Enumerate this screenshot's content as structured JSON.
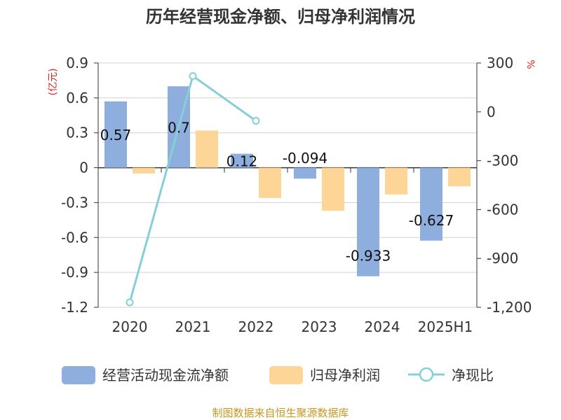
{
  "chart_data": {
    "type": "bar",
    "title": "历年经营现金净额、归母净利润情况",
    "categories": [
      "2020",
      "2021",
      "2022",
      "2023",
      "2024",
      "2025H1"
    ],
    "y_left": {
      "unit": "(亿元)",
      "range": [
        -1.2,
        0.9
      ],
      "ticks": [
        "0.9",
        "0.6",
        "0.3",
        "0",
        "-0.3",
        "-0.6",
        "-0.9",
        "-1.2"
      ]
    },
    "y_right": {
      "unit": "%",
      "range": [
        -1200,
        300
      ],
      "ticks": [
        "300",
        "0",
        "-300",
        "-600",
        "-900",
        "-1,200"
      ]
    },
    "series": [
      {
        "name": "经营活动现金流净额",
        "type": "bar",
        "axis": "left",
        "color": "#8eaedd",
        "values": [
          0.57,
          0.7,
          0.12,
          -0.094,
          -0.933,
          -0.627
        ],
        "labels": [
          "0.57",
          "0.7",
          "0.12",
          "-0.094",
          "-0.933",
          "-0.627"
        ]
      },
      {
        "name": "归母净利润",
        "type": "bar",
        "axis": "left",
        "color": "#fcd597",
        "values": [
          -0.05,
          0.32,
          -0.26,
          -0.37,
          -0.23,
          -0.16
        ]
      },
      {
        "name": "净现比",
        "type": "line",
        "axis": "right",
        "color": "#84cfd8",
        "values": [
          -1170,
          220,
          -55,
          null,
          null,
          null
        ]
      }
    ],
    "grid": true,
    "legend": "bottom"
  },
  "source": "制图数据来自恒生聚源数据库"
}
